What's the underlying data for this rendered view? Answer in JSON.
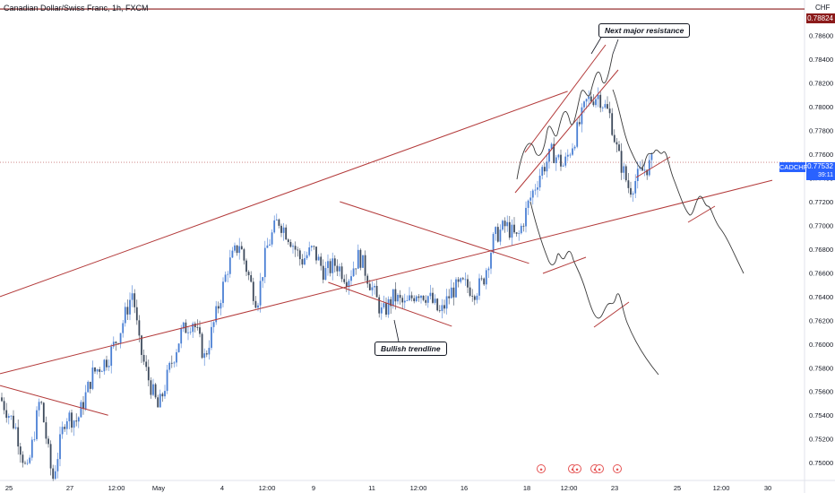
{
  "header": {
    "title": "Canadian Dollar/Swiss Franc, 1h, FXCM",
    "currency": "CHF"
  },
  "colors": {
    "candle_up": "#4a7fd4",
    "candle_down": "#3d4a5c",
    "trendline": "#b33a3a",
    "projection": "#3a3a3a",
    "resistance_line": "#8b1a1a",
    "current_line": "#c77777",
    "current_tag": "#2962ff",
    "resistance_tag": "#8b1a1a"
  },
  "price_tags": {
    "resistance": "0.78824",
    "current": "0.77532",
    "countdown": "39:11",
    "symbol": "CADCHF"
  },
  "annotations": {
    "resistance_note": "Next major resistance",
    "trendline_note": "Bullish trendline"
  },
  "event_icons": [
    "calendar-flag-icon",
    "calendar-flag-icon",
    "calendar-flag-icon",
    "calendar-flag-icon",
    "calendar-flag-icon",
    "calendar-flag-icon"
  ],
  "chart_data": {
    "type": "candlestick",
    "title": "Canadian Dollar/Swiss Franc, 1h, FXCM",
    "ylabel": "CHF",
    "ylim": [
      0.7485,
      0.789
    ],
    "y_ticks": [
      "0.78600",
      "0.78400",
      "0.78200",
      "0.78000",
      "0.77800",
      "0.77600",
      "0.77400",
      "0.77200",
      "0.77000",
      "0.76800",
      "0.76600",
      "0.76400",
      "0.76200",
      "0.76000",
      "0.75800",
      "0.75600",
      "0.75400",
      "0.75200",
      "0.75000"
    ],
    "x_ticks": [
      "25",
      "27",
      "12:00",
      "May",
      "4",
      "12:00",
      "9",
      "11",
      "12:00",
      "16",
      "18",
      "12:00",
      "23",
      "25",
      "12:00",
      "30"
    ],
    "close_path": [
      [
        0,
        0.7555
      ],
      [
        0.02,
        0.753
      ],
      [
        0.035,
        0.749
      ],
      [
        0.052,
        0.7555
      ],
      [
        0.068,
        0.7485
      ],
      [
        0.085,
        0.754
      ],
      [
        0.1,
        0.7535
      ],
      [
        0.12,
        0.7575
      ],
      [
        0.14,
        0.7588
      ],
      [
        0.155,
        0.761
      ],
      [
        0.172,
        0.7645
      ],
      [
        0.18,
        0.76
      ],
      [
        0.19,
        0.7575
      ],
      [
        0.205,
        0.7545
      ],
      [
        0.22,
        0.758
      ],
      [
        0.235,
        0.761
      ],
      [
        0.25,
        0.762
      ],
      [
        0.265,
        0.7588
      ],
      [
        0.28,
        0.7625
      ],
      [
        0.295,
        0.7665
      ],
      [
        0.31,
        0.7685
      ],
      [
        0.325,
        0.765
      ],
      [
        0.333,
        0.7635
      ],
      [
        0.345,
        0.768
      ],
      [
        0.36,
        0.7705
      ],
      [
        0.375,
        0.769
      ],
      [
        0.39,
        0.767
      ],
      [
        0.405,
        0.768
      ],
      [
        0.42,
        0.766
      ],
      [
        0.435,
        0.7668
      ],
      [
        0.45,
        0.7655
      ],
      [
        0.465,
        0.7675
      ],
      [
        0.48,
        0.765
      ],
      [
        0.495,
        0.7625
      ],
      [
        0.51,
        0.764
      ],
      [
        0.525,
        0.7632
      ],
      [
        0.54,
        0.7645
      ],
      [
        0.555,
        0.764
      ],
      [
        0.57,
        0.7625
      ],
      [
        0.585,
        0.7645
      ],
      [
        0.6,
        0.765
      ],
      [
        0.615,
        0.7645
      ],
      [
        0.625,
        0.7652
      ],
      [
        0.64,
        0.769
      ],
      [
        0.655,
        0.77
      ],
      [
        0.67,
        0.7688
      ],
      [
        0.685,
        0.772
      ],
      [
        0.7,
        0.7745
      ],
      [
        0.715,
        0.7762
      ],
      [
        0.73,
        0.775
      ],
      [
        0.745,
        0.7775
      ],
      [
        0.76,
        0.7805
      ],
      [
        0.775,
        0.781
      ],
      [
        0.79,
        0.7792
      ],
      [
        0.8,
        0.776
      ],
      [
        0.815,
        0.773
      ],
      [
        0.83,
        0.7745
      ],
      [
        0.845,
        0.7753
      ]
    ],
    "trendlines": [
      {
        "from": [
          0.0,
          0.764
        ],
        "to": [
          0.735,
          0.7813
        ]
      },
      {
        "from": [
          0.0,
          0.7575
        ],
        "to": [
          1.0,
          0.7738
        ]
      },
      {
        "from": [
          0.0,
          0.7565
        ],
        "to": [
          0.14,
          0.754
        ]
      },
      {
        "from": [
          0.44,
          0.772
        ],
        "to": [
          0.685,
          0.7668
        ]
      },
      {
        "from": [
          0.425,
          0.7652
        ],
        "to": [
          0.585,
          0.7615
        ]
      }
    ],
    "resistance_level": 0.78824,
    "current_price": 0.77532
  }
}
